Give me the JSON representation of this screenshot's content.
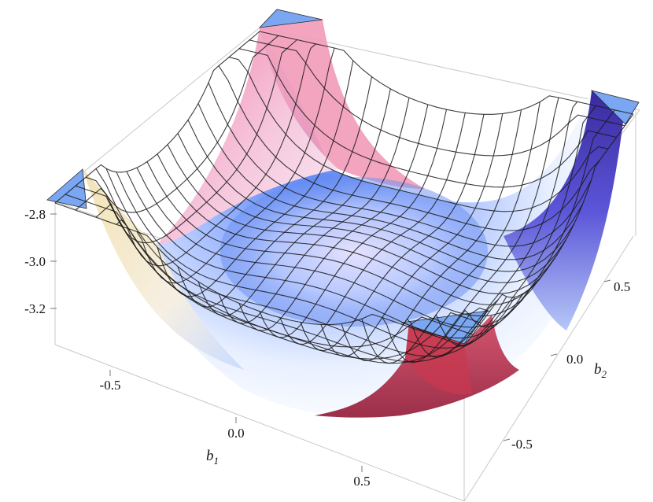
{
  "chart_data": {
    "type": "surface3d",
    "title": "",
    "xlabel": "b",
    "xlabel_sub": "1",
    "ylabel": "b",
    "ylabel_sub": "2",
    "zlabel": "",
    "xlim": [
      -0.8,
      0.8
    ],
    "ylim": [
      -0.8,
      0.8
    ],
    "zlim": [
      -3.35,
      -2.75
    ],
    "z_ticks": [
      "-2.8",
      "-3.0",
      "-3.2"
    ],
    "x_ticks": [
      "-0.5",
      "0.0",
      "0.5"
    ],
    "y_ticks": [
      "0.5",
      "0.0",
      "-0.5"
    ],
    "surface": {
      "shape": "double-well basin",
      "minimum_z": -3.32,
      "center_z": -3.05,
      "corner_z_clipped": -2.75,
      "mesh_lines_per_axis": 20
    },
    "colors": {
      "cap": "#7aa6f2",
      "edge_left": "#f3e3b4",
      "edge_back": "#f29ab8",
      "edge_right": "#3a2a9e",
      "edge_front": "#c8384f",
      "center": "#c6dcff",
      "basin_blue": "#4a78f0"
    }
  }
}
